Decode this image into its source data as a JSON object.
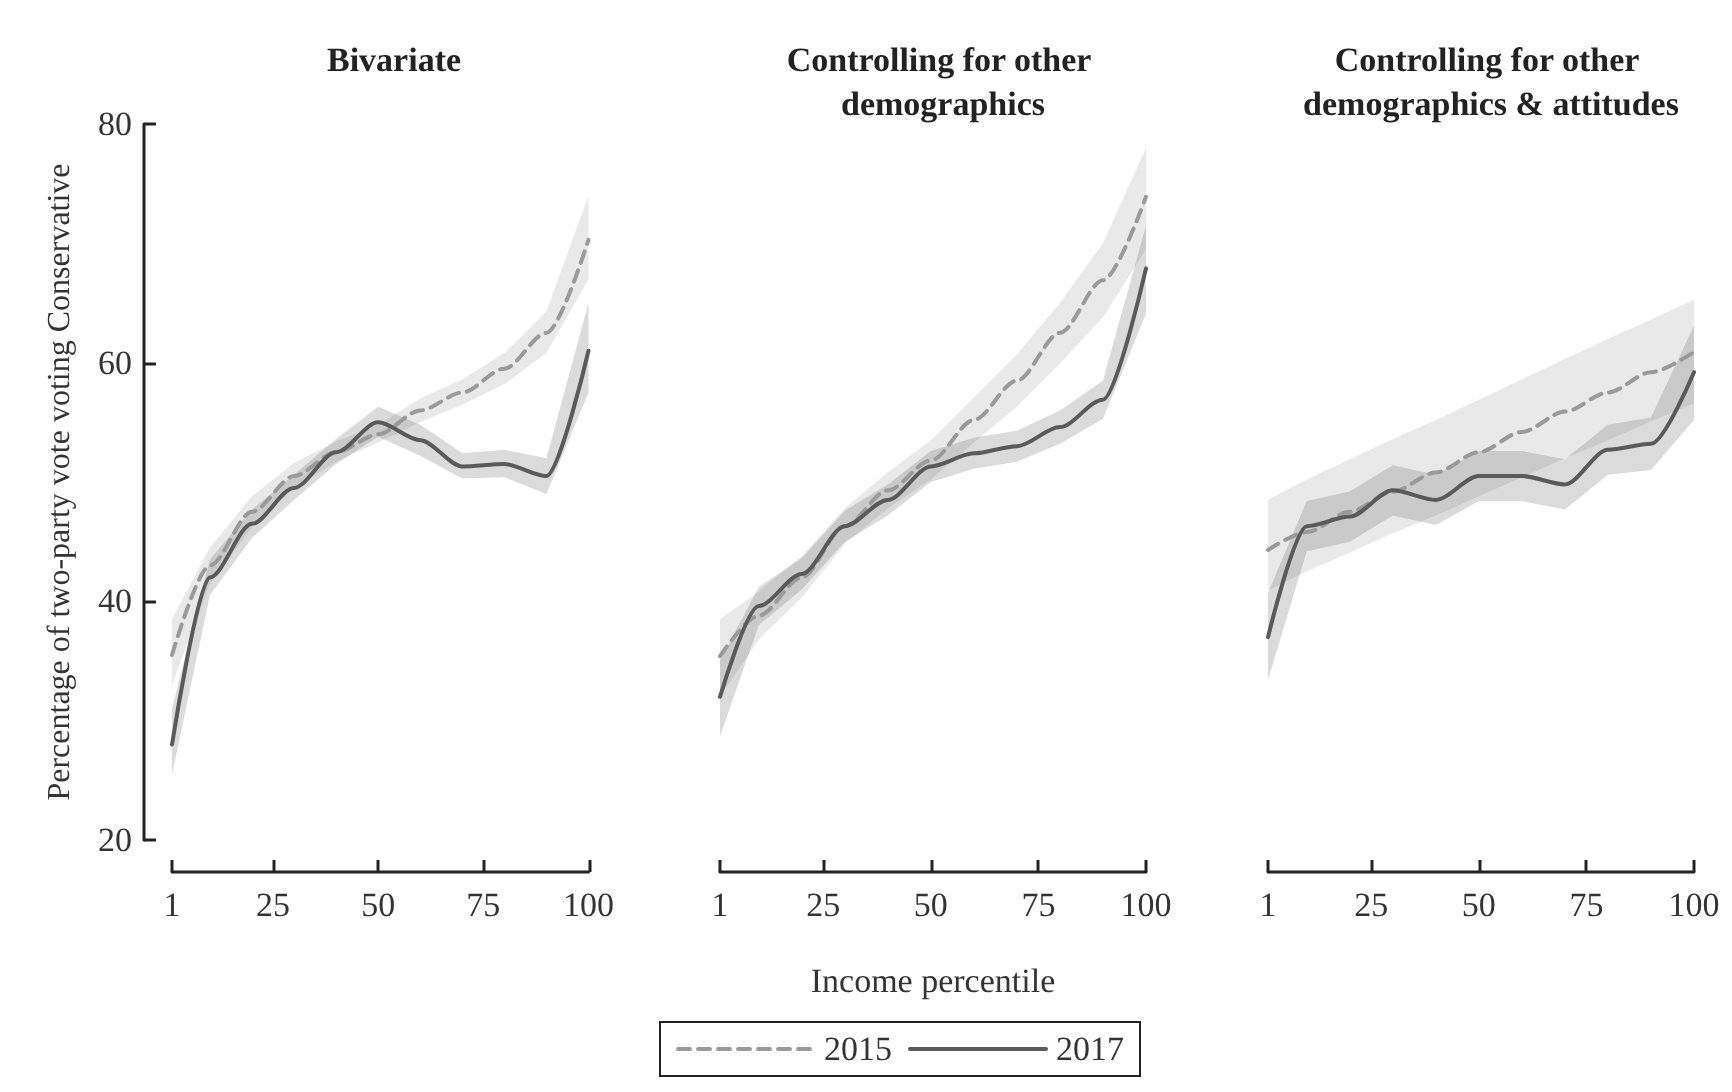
{
  "chart_data": [
    {
      "type": "line",
      "title": "Bivariate",
      "ylabel": "Percentage of two-party vote voting Conservative",
      "x": [
        1,
        10,
        20,
        30,
        40,
        50,
        60,
        70,
        80,
        90,
        100
      ],
      "xlim": [
        1,
        100
      ],
      "xticks": [
        1,
        25,
        50,
        75,
        100
      ],
      "ylim": [
        20,
        80
      ],
      "yticks": [
        20,
        40,
        60,
        80
      ],
      "grid": false,
      "legend": false,
      "marker": "none",
      "series": [
        {
          "color": "#9a9a9a",
          "line_style": "dashed",
          "values": [
            35.5,
            43,
            47.5,
            50.5,
            52.5,
            54,
            56,
            57.5,
            59.5,
            62.5,
            70.3
          ],
          "lower": [
            33,
            41.5,
            46.2,
            49.5,
            51.7,
            53.3,
            55,
            56.5,
            58.2,
            60.8,
            67
          ],
          "upper": [
            38.5,
            44.5,
            48.8,
            51.6,
            53.4,
            54.8,
            57,
            58.6,
            60.8,
            64.3,
            74
          ]
        },
        {
          "color": "#5a5a5a",
          "line_style": "solid",
          "values": [
            28,
            42,
            46.5,
            49.5,
            52.5,
            55,
            53.5,
            51.3,
            51.5,
            50.5,
            61
          ],
          "lower": [
            25.5,
            40.5,
            45.3,
            48.5,
            51.5,
            53.8,
            52.2,
            50.3,
            50.4,
            49,
            57.5
          ],
          "upper": [
            31,
            43.5,
            47.7,
            50.6,
            53.6,
            56.3,
            54.8,
            52.4,
            52.7,
            52,
            65
          ]
        }
      ]
    },
    {
      "type": "line",
      "title": "Controlling for other demographics",
      "xlabel": "Income percentile",
      "x": [
        1,
        10,
        20,
        30,
        40,
        50,
        60,
        70,
        80,
        90,
        100
      ],
      "xlim": [
        1,
        100
      ],
      "xticks": [
        1,
        25,
        50,
        75,
        100
      ],
      "ylim": [
        20,
        80
      ],
      "tick_labels": "x",
      "grid": false,
      "legend": "bottom",
      "marker": "none",
      "series": [
        {
          "name": "2015",
          "color": "#9a9a9a",
          "line_style": "dashed",
          "values": [
            35.4,
            38.8,
            42,
            46.3,
            49.3,
            51.8,
            55.2,
            58.5,
            62.5,
            66.9,
            73.9
          ],
          "lower": [
            32,
            36.8,
            40.3,
            44.8,
            47.8,
            50.2,
            53.3,
            56.3,
            59.9,
            63.8,
            69.5
          ],
          "upper": [
            38.5,
            40.8,
            43.8,
            47.8,
            50.8,
            53.5,
            57.1,
            60.7,
            65,
            70,
            78
          ]
        },
        {
          "name": "2017",
          "color": "#5a5a5a",
          "line_style": "solid",
          "values": [
            32,
            39.6,
            42.3,
            46.3,
            48.5,
            51.3,
            52.4,
            53,
            54.6,
            56.9,
            67.9
          ],
          "lower": [
            28.7,
            38,
            41,
            45,
            47.2,
            50,
            51.1,
            51.7,
            53.2,
            55.3,
            64.1
          ],
          "upper": [
            35,
            41.2,
            43.6,
            47.6,
            49.8,
            52.6,
            53.7,
            54.3,
            56,
            58.5,
            71.5
          ]
        }
      ]
    },
    {
      "type": "line",
      "title": "Controlling for other demographics & attitudes",
      "x": [
        1,
        10,
        20,
        30,
        40,
        50,
        60,
        70,
        80,
        90,
        100
      ],
      "xlim": [
        1,
        100
      ],
      "xticks": [
        1,
        25,
        50,
        75,
        100
      ],
      "ylim": [
        20,
        80
      ],
      "tick_labels": "x",
      "grid": false,
      "legend": false,
      "marker": "none",
      "series": [
        {
          "color": "#9a9a9a",
          "line_style": "dashed",
          "values": [
            44.3,
            45.8,
            47.5,
            49.2,
            50.8,
            52.5,
            54.2,
            55.9,
            57.5,
            59.2,
            60.9
          ],
          "lower": [
            40.9,
            42.5,
            44.1,
            45.7,
            47.2,
            48.8,
            50.4,
            52,
            53.5,
            55.1,
            56.6
          ],
          "upper": [
            48.5,
            50.2,
            51.9,
            53.6,
            55.2,
            56.9,
            58.6,
            60.3,
            62,
            63.6,
            65.3
          ]
        },
        {
          "color": "#5a5a5a",
          "line_style": "solid",
          "values": [
            37,
            46.3,
            47.1,
            49.3,
            48.5,
            50.5,
            50.5,
            49.8,
            52.7,
            53.2,
            59.2
          ],
          "lower": [
            33.4,
            44.2,
            45,
            47.2,
            46.4,
            48.4,
            48.4,
            47.7,
            50.6,
            51,
            55.2
          ],
          "upper": [
            40.7,
            48.4,
            49.2,
            51.4,
            50.6,
            52.6,
            52.6,
            51.9,
            54.8,
            55.4,
            63.1
          ]
        }
      ]
    }
  ]
}
